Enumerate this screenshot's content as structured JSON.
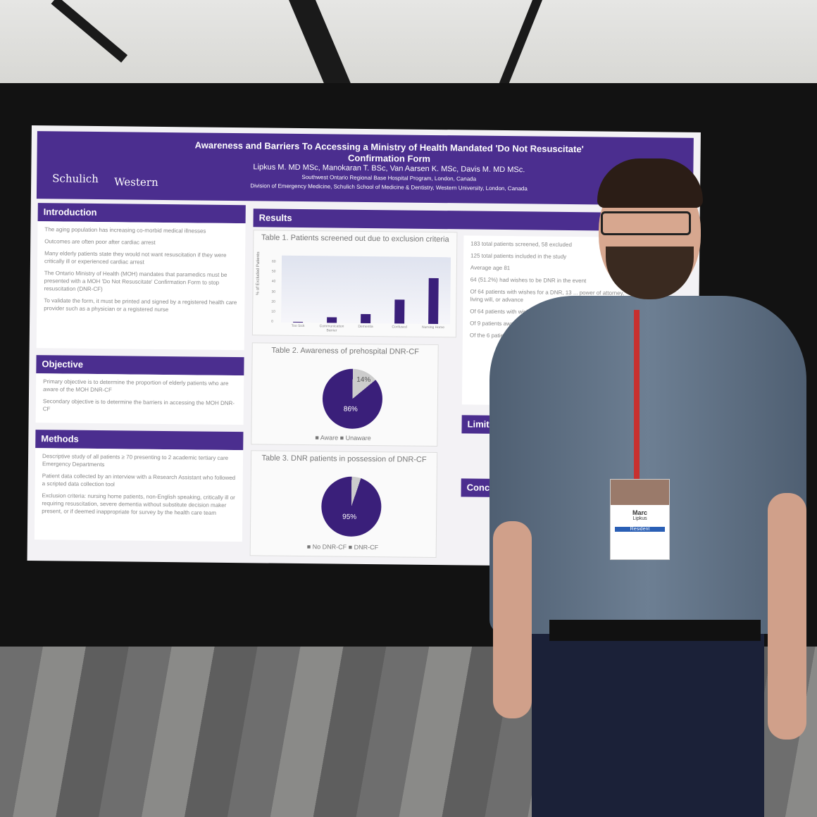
{
  "poster": {
    "logos": [
      "Schulich",
      "Western"
    ],
    "title": "Awareness and Barriers To Accessing a Ministry of Health Mandated 'Do Not Resuscitate' Confirmation Form",
    "authors": "Lipkus M. MD MSc, Manokaran T. BSc, Van Aarsen K. MSc, Davis M. MD MSc.",
    "affil1": "Southwest Ontario Regional Base Hospital Program, London, Canada",
    "affil2": "Division of Emergency Medicine, Schulich School of Medicine & Dentistry, Western University, London, Canada",
    "sections": {
      "intro": {
        "title": "Introduction",
        "items": [
          "The aging population has increasing co-morbid medical illnesses",
          "Outcomes are often poor after cardiac arrest",
          "Many elderly patients state they would not want resuscitation if they were critically ill or experienced cardiac arrest",
          "The Ontario Ministry of Health (MOH) mandates that paramedics must be presented with a MOH 'Do Not Resuscitate' Confirmation Form to stop resuscitation (DNR-CF)",
          "To validate the form, it must be printed and signed by a registered health care provider such as a physician or a registered nurse"
        ]
      },
      "objective": {
        "title": "Objective",
        "items": [
          "Primary objective is to determine the proportion of elderly patients who are aware of the MOH DNR-CF",
          "Secondary objective is to determine the barriers in accessing the MOH DNR-CF"
        ]
      },
      "methods": {
        "title": "Methods",
        "items": [
          "Descriptive study of all patients ≥ 70 presenting to 2 academic tertiary care Emergency Departments",
          "Patient data collected by an interview with a Research Assistant who followed a scripted data collection tool",
          "Exclusion criteria: nursing home patients, non-English speaking, critically ill or requiring resuscitation, severe dementia without substitute decision maker present, or if deemed inappropriate for survey by the health care team"
        ]
      },
      "results": {
        "title": "Results",
        "items": [
          "183 total patients screened, 58 excluded",
          "125 total patients included in the study",
          "Average age 81",
          "64 (51.2%) had wishes to be DNR in the event",
          "Of 64 patients with wishes for a DNR, 13 ... power of attorney, living will, or advance",
          "Of 64 patients with wishes for DNR ... prehospital DNR-CF",
          "Of 9 patients aware ... only 3 completed",
          "Of the 6 patients ... were identified"
        ]
      },
      "limitations": {
        "title": "Limitations"
      },
      "conclusion": {
        "title": "Conclusions"
      }
    },
    "table1": {
      "title": "Table 1. Patients screened out due to exclusion criteria",
      "ylabel": "% of Excluded Patients",
      "yticks": [
        "60",
        "50",
        "40",
        "30",
        "20",
        "10",
        "0"
      ],
      "categories": [
        "Too Sick",
        "Communication Barrier",
        "Dementia",
        "Confused",
        "Nursing Home"
      ],
      "values": [
        1,
        6,
        9,
        24,
        46
      ]
    },
    "table2": {
      "title": "Table 2. Awareness of prehospital DNR-CF",
      "slices": [
        {
          "label": "Aware",
          "pct": "14%"
        },
        {
          "label": "Unaware",
          "pct": "86%"
        }
      ]
    },
    "table3": {
      "title": "Table 3. DNR patients in possession of DNR-CF",
      "slices": [
        {
          "label": "No DNR-CF",
          "pct": "95%"
        },
        {
          "label": "DNR-CF",
          "pct": "5%"
        }
      ]
    }
  },
  "badge": {
    "name": "Marc",
    "surname": "Lipkus",
    "role": "Resident"
  }
}
